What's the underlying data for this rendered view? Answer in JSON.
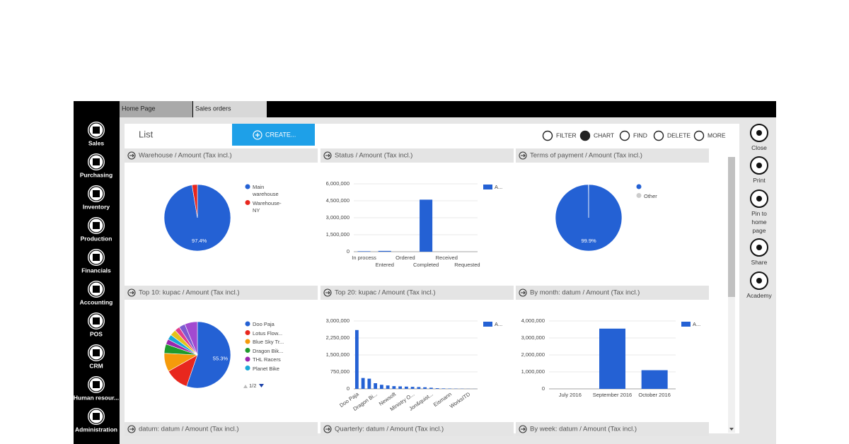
{
  "tabs": [
    "Home Page",
    "Sales orders"
  ],
  "sidebar": [
    "Sales",
    "Purchasing",
    "Inventory",
    "Production",
    "Financials",
    "Accounting",
    "POS",
    "CRM",
    "Human resour...",
    "Administration"
  ],
  "toolbar": {
    "title": "List",
    "create": "CREATE...",
    "actions": [
      "FILTER",
      "CHART",
      "FIND",
      "DELETE",
      "MORE"
    ]
  },
  "right_panel": [
    "Close",
    "Print",
    "Pin to home page",
    "Share",
    "Academy"
  ],
  "widgets": [
    {
      "title": "Warehouse / Amount (Tax incl.)",
      "chart": {
        "type": "pie",
        "categories": [
          "Main warehouse",
          "Warehouse-NY"
        ],
        "values": [
          97.4,
          2.6
        ],
        "value_labels": [
          "97.4%",
          null
        ],
        "colors": [
          "#2461d4",
          "#e8271e"
        ]
      }
    },
    {
      "title": "Status / Amount (Tax incl.)",
      "chart": {
        "type": "bar",
        "categories": [
          "In process",
          "Entered",
          "Ordered",
          "Completed",
          "Received",
          "Requested"
        ],
        "series": [
          {
            "name": "A...",
            "color": "#2461d4",
            "values": [
              40000,
              70000,
              0,
              4600000,
              0,
              0
            ]
          }
        ],
        "ylim": [
          0,
          6000000
        ],
        "yticks": [
          0,
          {
            "value": 1500000,
            "label": "1,500,000"
          },
          {
            "value": 3000000,
            "label": "3,000,000"
          },
          {
            "value": 4500000,
            "label": "4,500,000"
          },
          {
            "value": 6000000,
            "label": "6,000,000"
          }
        ],
        "grid": true
      }
    },
    {
      "title": "Terms of payment / Amount (Tax incl.)",
      "chart": {
        "type": "pie",
        "categories": [
          null,
          "Other"
        ],
        "values": [
          99.9,
          0.1
        ],
        "value_labels": [
          "99.9%",
          null
        ],
        "colors": [
          "#2461d4",
          "#cccccc"
        ]
      }
    },
    {
      "title": "Top 10: kupac / Amount (Tax incl.)",
      "chart": {
        "type": "pie",
        "categories": [
          "Doo Paja",
          "Lotus Flow...",
          "Blue Sky Tr...",
          "Dragon Bik...",
          "THL Racers",
          "Planet Bike",
          null,
          null,
          null,
          null
        ],
        "values": [
          55.3,
          11.5,
          9,
          4.5,
          2.5,
          2.5,
          3,
          2.5,
          3,
          6.2
        ],
        "value_labels": [
          "55.3%",
          null,
          null,
          null,
          null,
          null,
          null,
          null,
          null,
          null
        ],
        "colors": [
          "#2461d4",
          "#e8271e",
          "#f59a0b",
          "#1f9a2c",
          "#9b27ae",
          "#19a9d8",
          "#e5c21a",
          "#e23f8c",
          "#7d5bd0",
          "#a24ad0"
        ],
        "pager": "1/2"
      }
    },
    {
      "title": "Top 20: kupac / Amount (Tax incl.)",
      "chart": {
        "type": "bar",
        "categories": [
          "Doo Paja",
          null,
          null,
          "Dragon Bi...",
          null,
          null,
          "Newsoft",
          null,
          null,
          "Ministry O...",
          null,
          null,
          "Jon&quist...",
          null,
          null,
          "Eismann",
          null,
          null,
          "WorksITD",
          null
        ],
        "series": [
          {
            "name": "A...",
            "color": "#2461d4",
            "values": [
              2600000,
              480000,
              450000,
              250000,
              180000,
              150000,
              120000,
              110000,
              100000,
              90000,
              80000,
              70000,
              50000,
              30000,
              20000,
              15000,
              10000,
              8000,
              5000,
              3000
            ]
          }
        ],
        "ylim": [
          0,
          3000000
        ],
        "yticks": [
          0,
          {
            "value": 750000,
            "label": "750,000"
          },
          {
            "value": 1500000,
            "label": "1,500,000"
          },
          {
            "value": 2250000,
            "label": "2,250,000"
          },
          {
            "value": 3000000,
            "label": "3,000,000"
          }
        ],
        "grid": true
      }
    },
    {
      "title": "By month: datum / Amount (Tax incl.)",
      "chart": {
        "type": "bar",
        "categories": [
          "July 2016",
          "September 2016",
          "October 2016"
        ],
        "series": [
          {
            "name": "A...",
            "color": "#2461d4",
            "values": [
              0,
              3550000,
              1100000
            ]
          }
        ],
        "ylim": [
          0,
          4000000
        ],
        "yticks": [
          0,
          {
            "value": 1000000,
            "label": "1,000,000"
          },
          {
            "value": 2000000,
            "label": "2,000,000"
          },
          {
            "value": 3000000,
            "label": "3,000,000"
          },
          {
            "value": 4000000,
            "label": "4,000,000"
          }
        ],
        "grid": true
      }
    },
    {
      "title": "datum: datum / Amount (Tax incl.)"
    },
    {
      "title": "Quarterly: datum / Amount (Tax incl.)"
    },
    {
      "title": "By week: datum / Amount (Tax incl.)"
    }
  ]
}
